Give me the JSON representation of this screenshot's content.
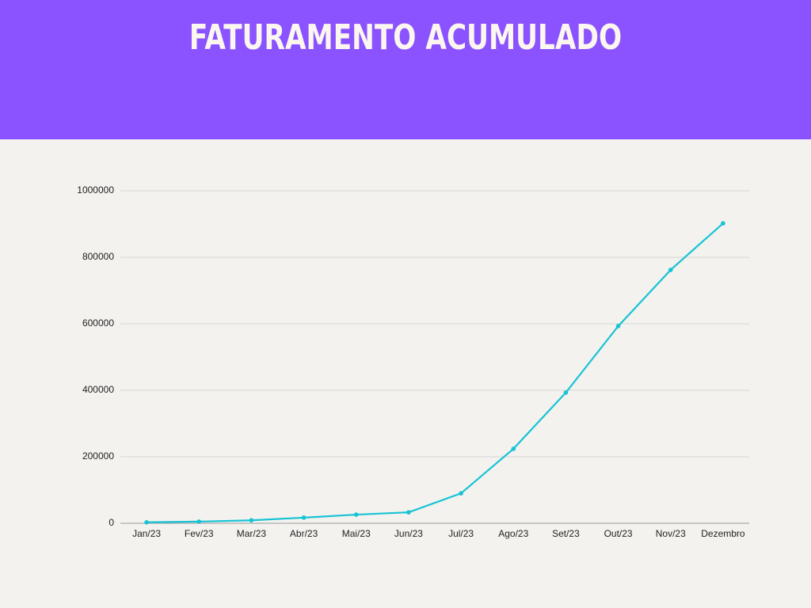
{
  "chart_data": {
    "type": "line",
    "title": "FATURAMENTO ACUMULADO",
    "categories": [
      "Jan/23",
      "Fev/23",
      "Mar/23",
      "Abr/23",
      "Mai/23",
      "Jun/23",
      "Jul/23",
      "Ago/23",
      "Set/23",
      "Out/23",
      "Nov/23",
      "Dezembro"
    ],
    "values": [
      3000,
      5000,
      9000,
      17000,
      26000,
      33000,
      90000,
      224000,
      393000,
      593000,
      762000,
      902000
    ],
    "color": "#17c3d6",
    "ylim": [
      0,
      1000000
    ],
    "yticks": [
      0,
      200000,
      400000,
      600000,
      800000,
      1000000
    ],
    "grid": true
  }
}
